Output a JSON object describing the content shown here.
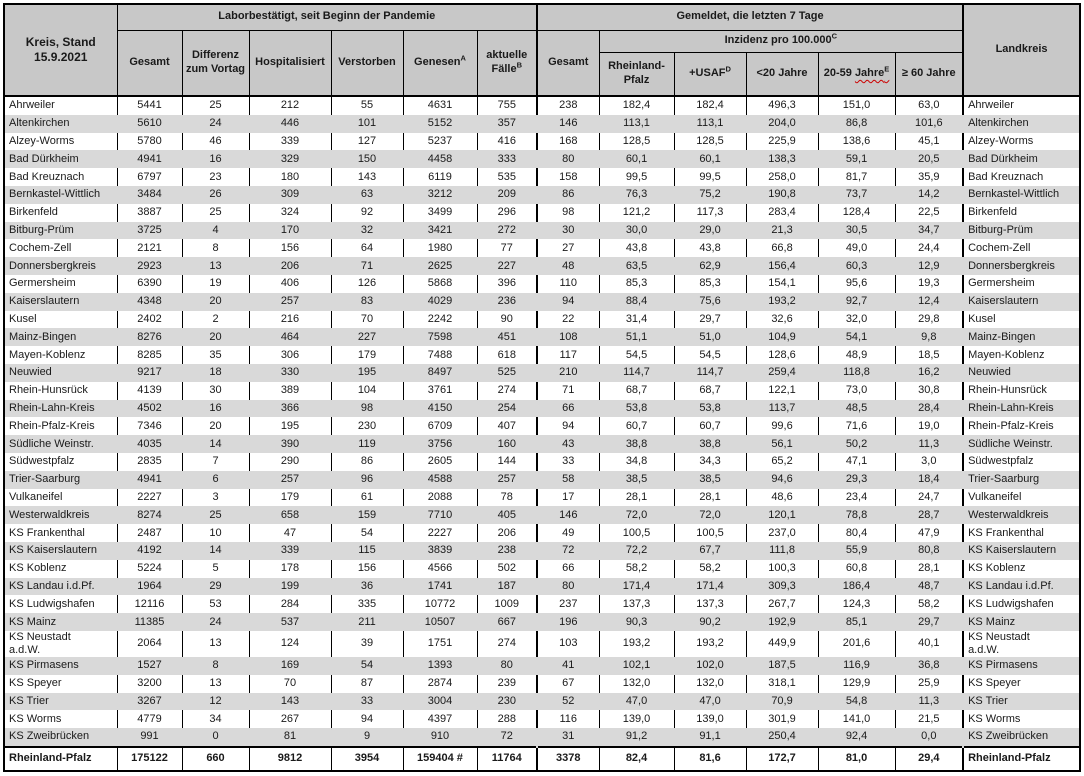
{
  "header": {
    "kreis_stand": "Kreis, Stand\n15.9.2021",
    "lab_section": "Laborbestätigt, seit Beginn der Pandemie",
    "reported_section": "Gemeldet, die letzten 7 Tage",
    "incidence": {
      "label": "Inzidenz pro 100.000",
      "sup": "C"
    },
    "landkreis": "Landkreis",
    "cols": {
      "gesamt": "Gesamt",
      "differenz": "Differenz zum Vortag",
      "hospitalisiert": "Hospitalisiert",
      "verstorben": "Verstorben",
      "genesen": {
        "label": "Genesen",
        "sup": "A"
      },
      "aktuelle": {
        "label": "aktuelle Fälle",
        "sup": "B"
      },
      "gesamt7": "Gesamt",
      "rlp": "Rheinland-Pfalz",
      "usaf": {
        "label": "+USAF",
        "sup": "D"
      },
      "u20": "<20 Jahre",
      "a2059": {
        "pre": "20-59",
        "word": "Jahre",
        "sup": "E"
      },
      "o60": "≥ 60 Jahre"
    }
  },
  "rows": [
    {
      "cells": [
        "Ahrweiler",
        "5441",
        "25",
        "212",
        "55",
        "4631",
        "755",
        "238",
        "182,4",
        "182,4",
        "496,3",
        "151,0",
        "63,0",
        "Ahrweiler"
      ]
    },
    {
      "cells": [
        "Altenkirchen",
        "5610",
        "24",
        "446",
        "101",
        "5152",
        "357",
        "146",
        "113,1",
        "113,1",
        "204,0",
        "86,8",
        "101,6",
        "Altenkirchen"
      ]
    },
    {
      "cells": [
        "Alzey-Worms",
        "5780",
        "46",
        "339",
        "127",
        "5237",
        "416",
        "168",
        "128,5",
        "128,5",
        "225,9",
        "138,6",
        "45,1",
        "Alzey-Worms"
      ]
    },
    {
      "cells": [
        "Bad Dürkheim",
        "4941",
        "16",
        "329",
        "150",
        "4458",
        "333",
        "80",
        "60,1",
        "60,1",
        "138,3",
        "59,1",
        "20,5",
        "Bad Dürkheim"
      ]
    },
    {
      "cells": [
        "Bad Kreuznach",
        "6797",
        "23",
        "180",
        "143",
        "6119",
        "535",
        "158",
        "99,5",
        "99,5",
        "258,0",
        "81,7",
        "35,9",
        "Bad Kreuznach"
      ]
    },
    {
      "cells": [
        "Bernkastel-Wittlich",
        "3484",
        "26",
        "309",
        "63",
        "3212",
        "209",
        "86",
        "76,3",
        "75,2",
        "190,8",
        "73,7",
        "14,2",
        "Bernkastel-Wittlich"
      ]
    },
    {
      "cells": [
        "Birkenfeld",
        "3887",
        "25",
        "324",
        "92",
        "3499",
        "296",
        "98",
        "121,2",
        "117,3",
        "283,4",
        "128,4",
        "22,5",
        "Birkenfeld"
      ]
    },
    {
      "cells": [
        "Bitburg-Prüm",
        "3725",
        "4",
        "170",
        "32",
        "3421",
        "272",
        "30",
        "30,0",
        "29,0",
        "21,3",
        "30,5",
        "34,7",
        "Bitburg-Prüm"
      ]
    },
    {
      "cells": [
        "Cochem-Zell",
        "2121",
        "8",
        "156",
        "64",
        "1980",
        "77",
        "27",
        "43,8",
        "43,8",
        "66,8",
        "49,0",
        "24,4",
        "Cochem-Zell"
      ]
    },
    {
      "cells": [
        "Donnersbergkreis",
        "2923",
        "13",
        "206",
        "71",
        "2625",
        "227",
        "48",
        "63,5",
        "62,9",
        "156,4",
        "60,3",
        "12,9",
        "Donnersbergkreis"
      ]
    },
    {
      "cells": [
        "Germersheim",
        "6390",
        "19",
        "406",
        "126",
        "5868",
        "396",
        "110",
        "85,3",
        "85,3",
        "154,1",
        "95,6",
        "19,3",
        "Germersheim"
      ]
    },
    {
      "cells": [
        "Kaiserslautern",
        "4348",
        "20",
        "257",
        "83",
        "4029",
        "236",
        "94",
        "88,4",
        "75,6",
        "193,2",
        "92,7",
        "12,4",
        "Kaiserslautern"
      ]
    },
    {
      "cells": [
        "Kusel",
        "2402",
        "2",
        "216",
        "70",
        "2242",
        "90",
        "22",
        "31,4",
        "29,7",
        "32,6",
        "32,0",
        "29,8",
        "Kusel"
      ]
    },
    {
      "cells": [
        "Mainz-Bingen",
        "8276",
        "20",
        "464",
        "227",
        "7598",
        "451",
        "108",
        "51,1",
        "51,0",
        "104,9",
        "54,1",
        "9,8",
        "Mainz-Bingen"
      ]
    },
    {
      "cells": [
        "Mayen-Koblenz",
        "8285",
        "35",
        "306",
        "179",
        "7488",
        "618",
        "117",
        "54,5",
        "54,5",
        "128,6",
        "48,9",
        "18,5",
        "Mayen-Koblenz"
      ]
    },
    {
      "cells": [
        "Neuwied",
        "9217",
        "18",
        "330",
        "195",
        "8497",
        "525",
        "210",
        "114,7",
        "114,7",
        "259,4",
        "118,8",
        "16,2",
        "Neuwied"
      ]
    },
    {
      "cells": [
        "Rhein-Hunsrück",
        "4139",
        "30",
        "389",
        "104",
        "3761",
        "274",
        "71",
        "68,7",
        "68,7",
        "122,1",
        "73,0",
        "30,8",
        "Rhein-Hunsrück"
      ]
    },
    {
      "cells": [
        "Rhein-Lahn-Kreis",
        "4502",
        "16",
        "366",
        "98",
        "4150",
        "254",
        "66",
        "53,8",
        "53,8",
        "113,7",
        "48,5",
        "28,4",
        "Rhein-Lahn-Kreis"
      ]
    },
    {
      "cells": [
        "Rhein-Pfalz-Kreis",
        "7346",
        "20",
        "195",
        "230",
        "6709",
        "407",
        "94",
        "60,7",
        "60,7",
        "99,6",
        "71,6",
        "19,0",
        "Rhein-Pfalz-Kreis"
      ]
    },
    {
      "cells": [
        "Südliche Weinstr.",
        "4035",
        "14",
        "390",
        "119",
        "3756",
        "160",
        "43",
        "38,8",
        "38,8",
        "56,1",
        "50,2",
        "11,3",
        "Südliche Weinstr."
      ]
    },
    {
      "cells": [
        "Südwestpfalz",
        "2835",
        "7",
        "290",
        "86",
        "2605",
        "144",
        "33",
        "34,8",
        "34,3",
        "65,2",
        "47,1",
        "3,0",
        "Südwestpfalz"
      ]
    },
    {
      "cells": [
        "Trier-Saarburg",
        "4941",
        "6",
        "257",
        "96",
        "4588",
        "257",
        "58",
        "38,5",
        "38,5",
        "94,6",
        "29,3",
        "18,4",
        "Trier-Saarburg"
      ]
    },
    {
      "cells": [
        "Vulkaneifel",
        "2227",
        "3",
        "179",
        "61",
        "2088",
        "78",
        "17",
        "28,1",
        "28,1",
        "48,6",
        "23,4",
        "24,7",
        "Vulkaneifel"
      ]
    },
    {
      "cells": [
        "Westerwaldkreis",
        "8274",
        "25",
        "658",
        "159",
        "7710",
        "405",
        "146",
        "72,0",
        "72,0",
        "120,1",
        "78,8",
        "28,7",
        "Westerwaldkreis"
      ]
    },
    {
      "cells": [
        "KS Frankenthal",
        "2487",
        "10",
        "47",
        "54",
        "2227",
        "206",
        "49",
        "100,5",
        "100,5",
        "237,0",
        "80,4",
        "47,9",
        "KS Frankenthal"
      ]
    },
    {
      "cells": [
        "KS Kaiserslautern",
        "4192",
        "14",
        "339",
        "115",
        "3839",
        "238",
        "72",
        "72,2",
        "67,7",
        "111,8",
        "55,9",
        "80,8",
        "KS Kaiserslautern"
      ]
    },
    {
      "cells": [
        "KS Koblenz",
        "5224",
        "5",
        "178",
        "156",
        "4566",
        "502",
        "66",
        "58,2",
        "58,2",
        "100,3",
        "60,8",
        "28,1",
        "KS Koblenz"
      ]
    },
    {
      "cells": [
        "KS Landau i.d.Pf.",
        "1964",
        "29",
        "199",
        "36",
        "1741",
        "187",
        "80",
        "171,4",
        "171,4",
        "309,3",
        "186,4",
        "48,7",
        "KS Landau i.d.Pf."
      ]
    },
    {
      "cells": [
        "KS Ludwigshafen",
        "12116",
        "53",
        "284",
        "335",
        "10772",
        "1009",
        "237",
        "137,3",
        "137,3",
        "267,7",
        "124,3",
        "58,2",
        "KS Ludwigshafen"
      ]
    },
    {
      "cells": [
        "KS Mainz",
        "11385",
        "24",
        "537",
        "211",
        "10507",
        "667",
        "196",
        "90,3",
        "90,2",
        "192,9",
        "85,1",
        "29,7",
        "KS Mainz"
      ]
    },
    {
      "cells": [
        "KS Neustadt\na.d.W.",
        "2064",
        "13",
        "124",
        "39",
        "1751",
        "274",
        "103",
        "193,2",
        "193,2",
        "449,9",
        "201,6",
        "40,1",
        "KS Neustadt\na.d.W."
      ]
    },
    {
      "cells": [
        "KS Pirmasens",
        "1527",
        "8",
        "169",
        "54",
        "1393",
        "80",
        "41",
        "102,1",
        "102,0",
        "187,5",
        "116,9",
        "36,8",
        "KS Pirmasens"
      ]
    },
    {
      "cells": [
        "KS Speyer",
        "3200",
        "13",
        "70",
        "87",
        "2874",
        "239",
        "67",
        "132,0",
        "132,0",
        "318,1",
        "129,9",
        "25,9",
        "KS Speyer"
      ]
    },
    {
      "cells": [
        "KS Trier",
        "3267",
        "12",
        "143",
        "33",
        "3004",
        "230",
        "52",
        "47,0",
        "47,0",
        "70,9",
        "54,8",
        "11,3",
        "KS Trier"
      ]
    },
    {
      "cells": [
        "KS Worms",
        "4779",
        "34",
        "267",
        "94",
        "4397",
        "288",
        "116",
        "139,0",
        "139,0",
        "301,9",
        "141,0",
        "21,5",
        "KS Worms"
      ]
    },
    {
      "cells": [
        "KS Zweibrücken",
        "991",
        "0",
        "81",
        "9",
        "910",
        "72",
        "31",
        "91,2",
        "91,1",
        "250,4",
        "92,4",
        "0,0",
        "KS Zweibrücken"
      ]
    }
  ],
  "total": {
    "cells": [
      "Rheinland-Pfalz",
      "175122",
      "660",
      "9812",
      "3954",
      "159404 #",
      "11764",
      "3378",
      "82,4",
      "81,6",
      "172,7",
      "81,0",
      "29,4",
      "Rheinland-Pfalz"
    ]
  },
  "colors": {
    "header_bg": "#c8c8c8",
    "stripe_bg": "#d9d9d9",
    "border": "#000000",
    "squiggle": "#cc0000",
    "text": "#1a1a1a"
  }
}
